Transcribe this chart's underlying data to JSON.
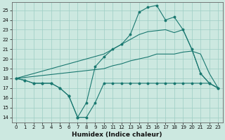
{
  "xlabel": "Humidex (Indice chaleur)",
  "bg_color": "#cce8e0",
  "grid_color": "#9ecdc4",
  "line_color": "#1a7870",
  "spine_color": "#666666",
  "xlim": [
    -0.5,
    23.5
  ],
  "ylim": [
    13.5,
    25.8
  ],
  "xticks": [
    0,
    1,
    2,
    3,
    4,
    5,
    6,
    7,
    8,
    9,
    10,
    11,
    12,
    13,
    14,
    15,
    16,
    17,
    18,
    19,
    20,
    21,
    22,
    23
  ],
  "yticks": [
    14,
    15,
    16,
    17,
    18,
    19,
    20,
    21,
    22,
    23,
    24,
    25
  ],
  "line_dip_x": [
    0,
    1,
    2,
    3,
    4,
    5,
    6,
    7,
    8,
    9,
    10,
    11,
    12,
    13,
    14,
    15,
    16,
    17,
    18,
    19,
    20,
    21,
    22,
    23
  ],
  "line_dip_y": [
    18,
    17.8,
    17.5,
    17.5,
    17.5,
    17.0,
    16.2,
    14.0,
    14.0,
    15.5,
    17.5,
    17.5,
    17.5,
    17.5,
    17.5,
    17.5,
    17.5,
    17.5,
    17.5,
    17.5,
    17.5,
    17.5,
    17.5,
    17.0
  ],
  "line_main_x": [
    0,
    1,
    2,
    3,
    4,
    5,
    6,
    7,
    8,
    9,
    10,
    11,
    12,
    13,
    14,
    15,
    16,
    17,
    18,
    19,
    20,
    21,
    22,
    23
  ],
  "line_main_y": [
    18,
    17.8,
    17.5,
    17.5,
    17.5,
    17.0,
    16.2,
    14.0,
    15.5,
    19.2,
    20.2,
    21.0,
    21.5,
    22.5,
    24.8,
    25.3,
    25.5,
    24.0,
    24.3,
    23.0,
    21.0,
    18.5,
    17.5,
    17.0
  ],
  "line_upper_x": [
    0,
    10,
    11,
    12,
    13,
    14,
    15,
    16,
    17,
    18,
    19,
    20,
    21,
    22,
    23
  ],
  "line_upper_y": [
    18,
    20.5,
    21.0,
    21.5,
    22.0,
    22.5,
    22.8,
    22.9,
    23.0,
    22.7,
    23.0,
    21.0,
    18.5,
    17.5,
    17.0
  ],
  "line_lower_x": [
    0,
    10,
    11,
    12,
    13,
    14,
    15,
    16,
    17,
    18,
    19,
    20,
    21,
    22,
    23
  ],
  "line_lower_y": [
    18,
    19.0,
    19.3,
    19.5,
    19.8,
    20.0,
    20.2,
    20.5,
    20.5,
    20.5,
    20.7,
    20.8,
    20.5,
    18.5,
    17.0
  ],
  "tick_fontsize": 5.0,
  "xlabel_fontsize": 6.5
}
